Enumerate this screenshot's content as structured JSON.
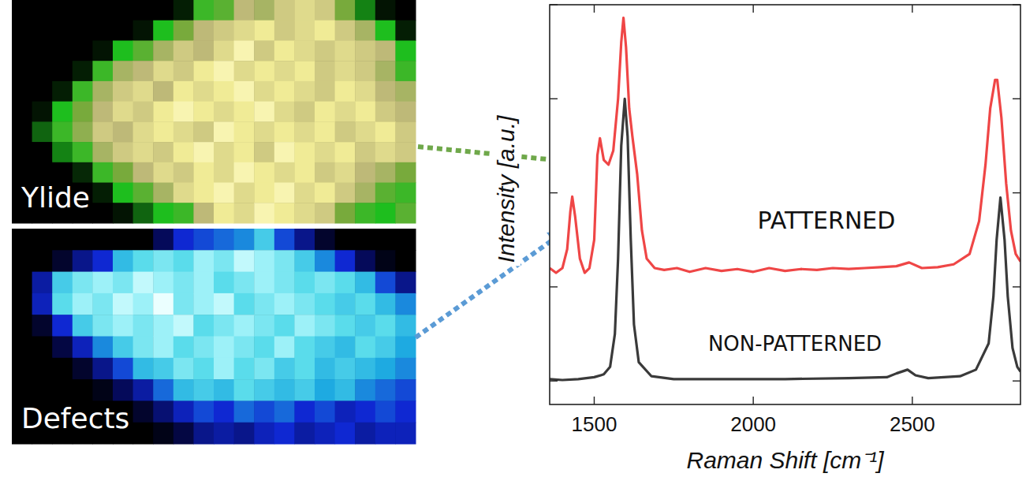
{
  "chart_data": [
    {
      "type": "heatmap",
      "title": "Ylide",
      "cells": [
        [
          0,
          0,
          0,
          0,
          0,
          0,
          0,
          0,
          0.15,
          0.5,
          0.55,
          0.75,
          0.7,
          0.8,
          0.85,
          0.8,
          0.6,
          0.35,
          0.1,
          0
        ],
        [
          0,
          0,
          0,
          0,
          0,
          0,
          0.1,
          0.45,
          0.6,
          0.75,
          0.8,
          0.85,
          0.9,
          0.8,
          0.85,
          0.9,
          0.8,
          0.7,
          0.45,
          0.15
        ],
        [
          0,
          0,
          0,
          0,
          0.1,
          0.45,
          0.55,
          0.7,
          0.8,
          0.75,
          0.85,
          0.95,
          0.8,
          0.9,
          0.85,
          0.8,
          0.85,
          0.8,
          0.75,
          0.45
        ],
        [
          0,
          0,
          0,
          0.15,
          0.5,
          0.7,
          0.75,
          0.85,
          0.8,
          0.9,
          0.95,
          0.85,
          0.9,
          0.85,
          0.9,
          0.8,
          0.85,
          0.8,
          0.7,
          0.5
        ],
        [
          0,
          0,
          0.15,
          0.5,
          0.7,
          0.8,
          0.85,
          0.75,
          0.9,
          0.85,
          0.9,
          0.95,
          0.85,
          0.9,
          0.85,
          0.8,
          0.9,
          0.85,
          0.75,
          0.7
        ],
        [
          0,
          0.1,
          0.45,
          0.6,
          0.75,
          0.85,
          0.8,
          0.9,
          0.95,
          0.9,
          0.85,
          0.9,
          0.95,
          0.85,
          0.8,
          0.9,
          0.85,
          0.9,
          0.8,
          0.75
        ],
        [
          0,
          0.3,
          0.5,
          0.65,
          0.8,
          0.75,
          0.85,
          0.9,
          0.85,
          0.8,
          0.95,
          0.9,
          0.85,
          0.9,
          0.85,
          0.9,
          0.8,
          0.85,
          0.9,
          0.8
        ],
        [
          0,
          0,
          0.35,
          0.5,
          0.7,
          0.8,
          0.85,
          0.8,
          0.9,
          0.95,
          0.85,
          0.9,
          0.8,
          0.95,
          0.9,
          0.85,
          0.9,
          0.8,
          0.85,
          0.8
        ],
        [
          0,
          0,
          0,
          0.2,
          0.5,
          0.6,
          0.75,
          0.85,
          0.8,
          0.9,
          0.85,
          0.95,
          0.9,
          0.85,
          0.9,
          0.8,
          0.85,
          0.75,
          0.7,
          0.6
        ],
        [
          0,
          0,
          0,
          0,
          0.15,
          0.45,
          0.55,
          0.7,
          0.85,
          0.9,
          0.95,
          0.85,
          0.9,
          0.95,
          0.85,
          0.9,
          0.8,
          0.7,
          0.55,
          0.5
        ],
        [
          0,
          0,
          0,
          0,
          0,
          0.1,
          0.3,
          0.45,
          0.5,
          0.75,
          0.9,
          0.85,
          0.95,
          0.9,
          0.85,
          0.8,
          0.6,
          0.5,
          0.45,
          0.55
        ]
      ]
    },
    {
      "type": "heatmap",
      "title": "Defects",
      "cells": [
        [
          0,
          0,
          0,
          0,
          0,
          0,
          0,
          0.2,
          0.45,
          0.5,
          0.55,
          0.6,
          0.75,
          0.5,
          0.3,
          0.1,
          0,
          0,
          0,
          0
        ],
        [
          0,
          0,
          0.1,
          0.3,
          0.45,
          0.7,
          0.8,
          0.85,
          0.8,
          0.9,
          0.85,
          0.95,
          0.9,
          0.85,
          0.75,
          0.6,
          0.45,
          0.2,
          0.05,
          0
        ],
        [
          0,
          0.35,
          0.75,
          0.85,
          0.9,
          0.85,
          0.95,
          0.9,
          0.85,
          0.9,
          0.8,
          0.85,
          0.9,
          0.85,
          0.8,
          0.85,
          0.8,
          0.7,
          0.5,
          0.3
        ],
        [
          0,
          0.4,
          0.8,
          0.9,
          0.85,
          0.95,
          0.9,
          1,
          0.85,
          0.9,
          0.95,
          0.8,
          0.85,
          0.9,
          0.85,
          0.8,
          0.75,
          0.8,
          0.7,
          0.6
        ],
        [
          0,
          0.1,
          0.45,
          0.75,
          0.85,
          0.9,
          0.85,
          0.9,
          0.95,
          0.8,
          0.85,
          0.9,
          0.85,
          0.8,
          0.9,
          0.85,
          0.8,
          0.75,
          0.8,
          0.7
        ],
        [
          0,
          0,
          0.15,
          0.4,
          0.6,
          0.75,
          0.85,
          0.9,
          0.8,
          0.85,
          0.9,
          0.85,
          0.8,
          0.9,
          0.8,
          0.75,
          0.7,
          0.8,
          0.75,
          0.65
        ],
        [
          0,
          0,
          0,
          0.1,
          0.3,
          0.5,
          0.7,
          0.75,
          0.85,
          0.8,
          0.9,
          0.8,
          0.85,
          0.75,
          0.8,
          0.7,
          0.75,
          0.7,
          0.65,
          0.6
        ],
        [
          0,
          0,
          0,
          0,
          0.05,
          0.2,
          0.35,
          0.55,
          0.7,
          0.75,
          0.7,
          0.8,
          0.75,
          0.7,
          0.75,
          0.65,
          0.7,
          0.6,
          0.55,
          0.5
        ],
        [
          0,
          0,
          0,
          0,
          0,
          0,
          0.1,
          0.25,
          0.4,
          0.5,
          0.45,
          0.55,
          0.5,
          0.55,
          0.45,
          0.5,
          0.4,
          0.45,
          0.5,
          0.45
        ],
        [
          0,
          0,
          0,
          0,
          0,
          0,
          0,
          0.05,
          0.15,
          0.3,
          0.35,
          0.3,
          0.4,
          0.45,
          0.35,
          0.4,
          0.45,
          0.35,
          0.4,
          0.4
        ]
      ]
    },
    {
      "type": "line",
      "x_label": "Raman Shift [cm⁻¹]",
      "y_label": "Intensity [a.u.]",
      "xlim": [
        1360,
        2840
      ],
      "xticks": [
        1500,
        2000,
        2500
      ],
      "ylim": [
        -0.25,
        4
      ],
      "yticks": [
        0,
        1,
        2,
        3,
        4
      ],
      "tick_labels": "x",
      "series": [
        {
          "name": "PATTERNED",
          "color": "#ef4646",
          "x": [
            1360,
            1380,
            1400,
            1415,
            1425,
            1431,
            1440,
            1455,
            1470,
            1485,
            1500,
            1510,
            1518,
            1530,
            1545,
            1560,
            1575,
            1585,
            1592,
            1600,
            1610,
            1620,
            1635,
            1650,
            1665,
            1690,
            1720,
            1760,
            1800,
            1850,
            1900,
            1950,
            2000,
            2050,
            2100,
            2150,
            2200,
            2250,
            2300,
            2350,
            2400,
            2450,
            2490,
            2530,
            2580,
            2630,
            2680,
            2710,
            2730,
            2745,
            2760,
            2767,
            2780,
            2795,
            2810,
            2825,
            2840
          ],
          "values": [
            1.2,
            1.15,
            1.2,
            1.4,
            1.8,
            1.96,
            1.75,
            1.3,
            1.15,
            1.2,
            1.5,
            2.4,
            2.58,
            2.35,
            2.3,
            2.45,
            3.0,
            3.6,
            3.86,
            3.55,
            2.9,
            2.6,
            2.2,
            1.6,
            1.3,
            1.2,
            1.18,
            1.2,
            1.16,
            1.2,
            1.17,
            1.19,
            1.16,
            1.2,
            1.17,
            1.19,
            1.18,
            1.2,
            1.19,
            1.2,
            1.21,
            1.22,
            1.26,
            1.2,
            1.21,
            1.24,
            1.35,
            1.7,
            2.3,
            2.9,
            3.2,
            3.2,
            2.8,
            2.1,
            1.6,
            1.35,
            1.27
          ]
        },
        {
          "name": "NON-PATTERNED",
          "color": "#3a3a3a",
          "x": [
            1360,
            1400,
            1450,
            1500,
            1530,
            1550,
            1565,
            1575,
            1585,
            1596,
            1605,
            1615,
            1625,
            1640,
            1680,
            1750,
            1900,
            2100,
            2300,
            2420,
            2450,
            2485,
            2510,
            2550,
            2650,
            2700,
            2740,
            2755,
            2765,
            2777,
            2790,
            2800,
            2815,
            2830,
            2840
          ],
          "values": [
            0.02,
            0.01,
            0.02,
            0.04,
            0.07,
            0.15,
            0.5,
            1.3,
            2.5,
            3.0,
            2.6,
            1.5,
            0.6,
            0.2,
            0.05,
            0.02,
            0.02,
            0.02,
            0.03,
            0.04,
            0.08,
            0.12,
            0.06,
            0.03,
            0.05,
            0.12,
            0.4,
            0.9,
            1.5,
            1.95,
            1.5,
            0.9,
            0.35,
            0.15,
            0.1
          ]
        }
      ]
    }
  ]
}
